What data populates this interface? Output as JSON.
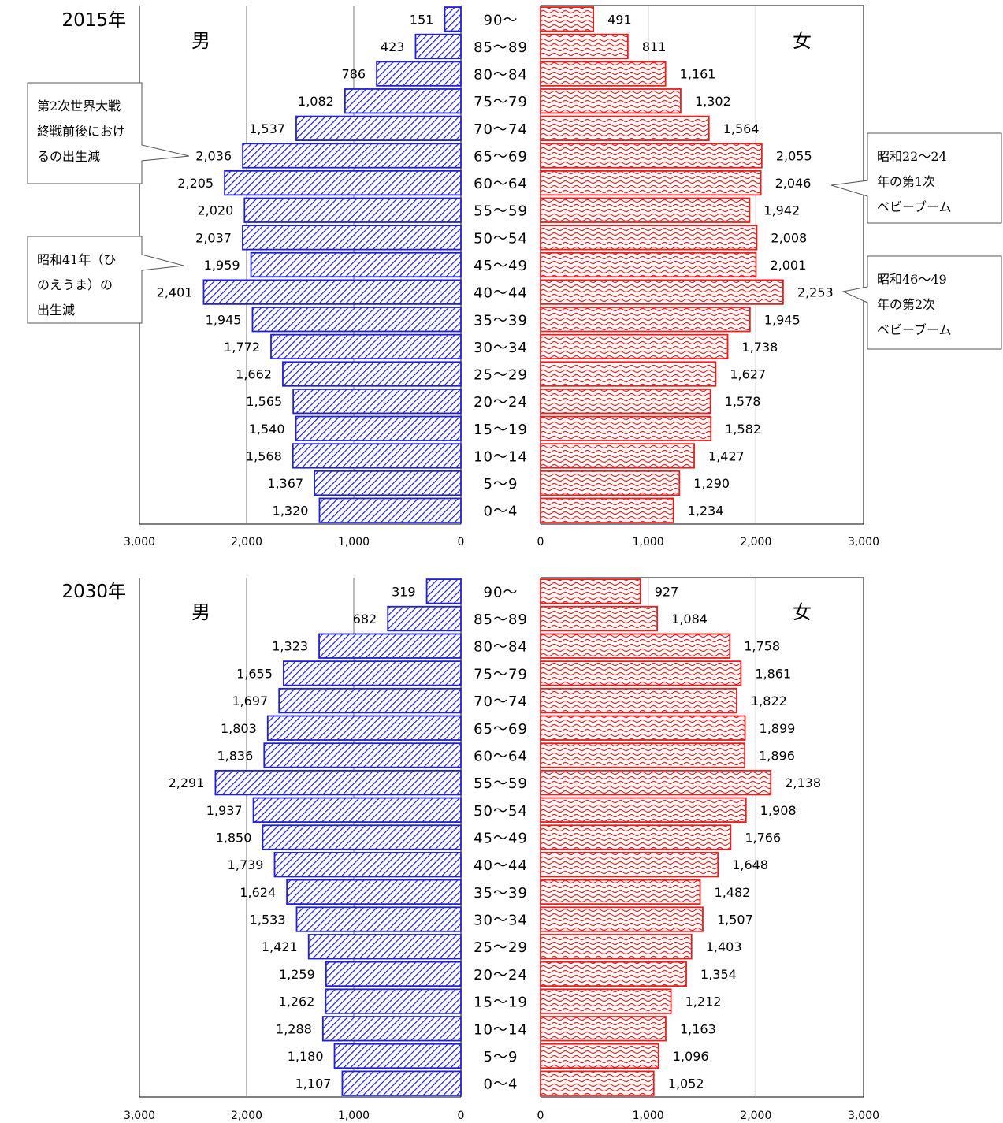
{
  "colors": {
    "male": "#1f1fd6",
    "female": "#ee1c1c",
    "grid": "#777777",
    "text": "#000000"
  },
  "chart_data": [
    {
      "type": "bar",
      "title": "2015年",
      "male_label": "男",
      "female_label": "女",
      "categories": [
        "90〜",
        "85〜89",
        "80〜84",
        "75〜79",
        "70〜74",
        "65〜69",
        "60〜64",
        "55〜59",
        "50〜54",
        "45〜49",
        "40〜44",
        "35〜39",
        "30〜34",
        "25〜29",
        "20〜24",
        "15〜19",
        "10〜14",
        "5〜9",
        "0〜4"
      ],
      "series": [
        {
          "name": "男",
          "values": [
            151,
            423,
            786,
            1082,
            1537,
            2036,
            2205,
            2020,
            2037,
            1959,
            2401,
            1945,
            1772,
            1662,
            1565,
            1540,
            1568,
            1367,
            1320
          ]
        },
        {
          "name": "女",
          "values": [
            491,
            811,
            1161,
            1302,
            1564,
            2055,
            2046,
            1942,
            2008,
            2001,
            2253,
            1945,
            1738,
            1627,
            1578,
            1582,
            1427,
            1290,
            1234
          ]
        }
      ],
      "value_labels": {
        "male": [
          "151",
          "423",
          "786",
          "1,082",
          "1,537",
          "2,036",
          "2,205",
          "2,020",
          "2,037",
          "1,959",
          "2,401",
          "1,945",
          "1,772",
          "1,662",
          "1,565",
          "1,540",
          "1,568",
          "1,367",
          "1,320"
        ],
        "female": [
          "491",
          "811",
          "1,161",
          "1,302",
          "1,564",
          "2,055",
          "2,046",
          "1,942",
          "2,008",
          "2,001",
          "2,253",
          "1,945",
          "1,738",
          "1,627",
          "1,578",
          "1,582",
          "1,427",
          "1,290",
          "1,234"
        ]
      },
      "xlim": [
        0,
        3000
      ],
      "male_ticks": [
        "3,000",
        "2,000",
        "1,000",
        "0"
      ],
      "female_ticks": [
        "0",
        "1,000",
        "2,000",
        "3,000"
      ],
      "grid": true,
      "annotations": [
        {
          "side": "left",
          "lines": [
            "第2次世界大戦",
            "終戦前後におけ",
            "るの出生減"
          ],
          "target": "65〜69"
        },
        {
          "side": "left",
          "lines": [
            "昭和41年（ひ",
            "のえうま）の",
            "出生減"
          ],
          "target": "45〜49"
        },
        {
          "side": "right",
          "lines": [
            "昭和22〜24",
            "年の第1次",
            "ベビーブーム"
          ],
          "target": "60〜64"
        },
        {
          "side": "right",
          "lines": [
            "昭和46〜49",
            "年の第2次",
            "ベビーブーム"
          ],
          "target": "40〜44"
        }
      ]
    },
    {
      "type": "bar",
      "title": "2030年",
      "male_label": "男",
      "female_label": "女",
      "categories": [
        "90〜",
        "85〜89",
        "80〜84",
        "75〜79",
        "70〜74",
        "65〜69",
        "60〜64",
        "55〜59",
        "50〜54",
        "45〜49",
        "40〜44",
        "35〜39",
        "30〜34",
        "25〜29",
        "20〜24",
        "15〜19",
        "10〜14",
        "5〜9",
        "0〜4"
      ],
      "series": [
        {
          "name": "男",
          "values": [
            319,
            682,
            1323,
            1655,
            1697,
            1803,
            1836,
            2291,
            1937,
            1850,
            1739,
            1624,
            1533,
            1421,
            1259,
            1262,
            1288,
            1180,
            1107
          ]
        },
        {
          "name": "女",
          "values": [
            927,
            1084,
            1758,
            1861,
            1822,
            1899,
            1896,
            2138,
            1908,
            1766,
            1648,
            1482,
            1507,
            1403,
            1354,
            1212,
            1163,
            1096,
            1052
          ]
        }
      ],
      "value_labels": {
        "male": [
          "319",
          "682",
          "1,323",
          "1,655",
          "1,697",
          "1,803",
          "1,836",
          "2,291",
          "1,937",
          "1,850",
          "1,739",
          "1,624",
          "1,533",
          "1,421",
          "1,259",
          "1,262",
          "1,288",
          "1,180",
          "1,107"
        ],
        "female": [
          "927",
          "1,084",
          "1,758",
          "1,861",
          "1,822",
          "1,899",
          "1,896",
          "2,138",
          "1,908",
          "1,766",
          "1,648",
          "1,482",
          "1,507",
          "1,403",
          "1,354",
          "1,212",
          "1,163",
          "1,096",
          "1,052"
        ]
      },
      "xlim": [
        0,
        3000
      ],
      "male_ticks": [
        "3,000",
        "2,000",
        "1,000",
        "0"
      ],
      "female_ticks": [
        "0",
        "1,000",
        "2,000",
        "3,000"
      ],
      "grid": true,
      "annotations": []
    }
  ]
}
